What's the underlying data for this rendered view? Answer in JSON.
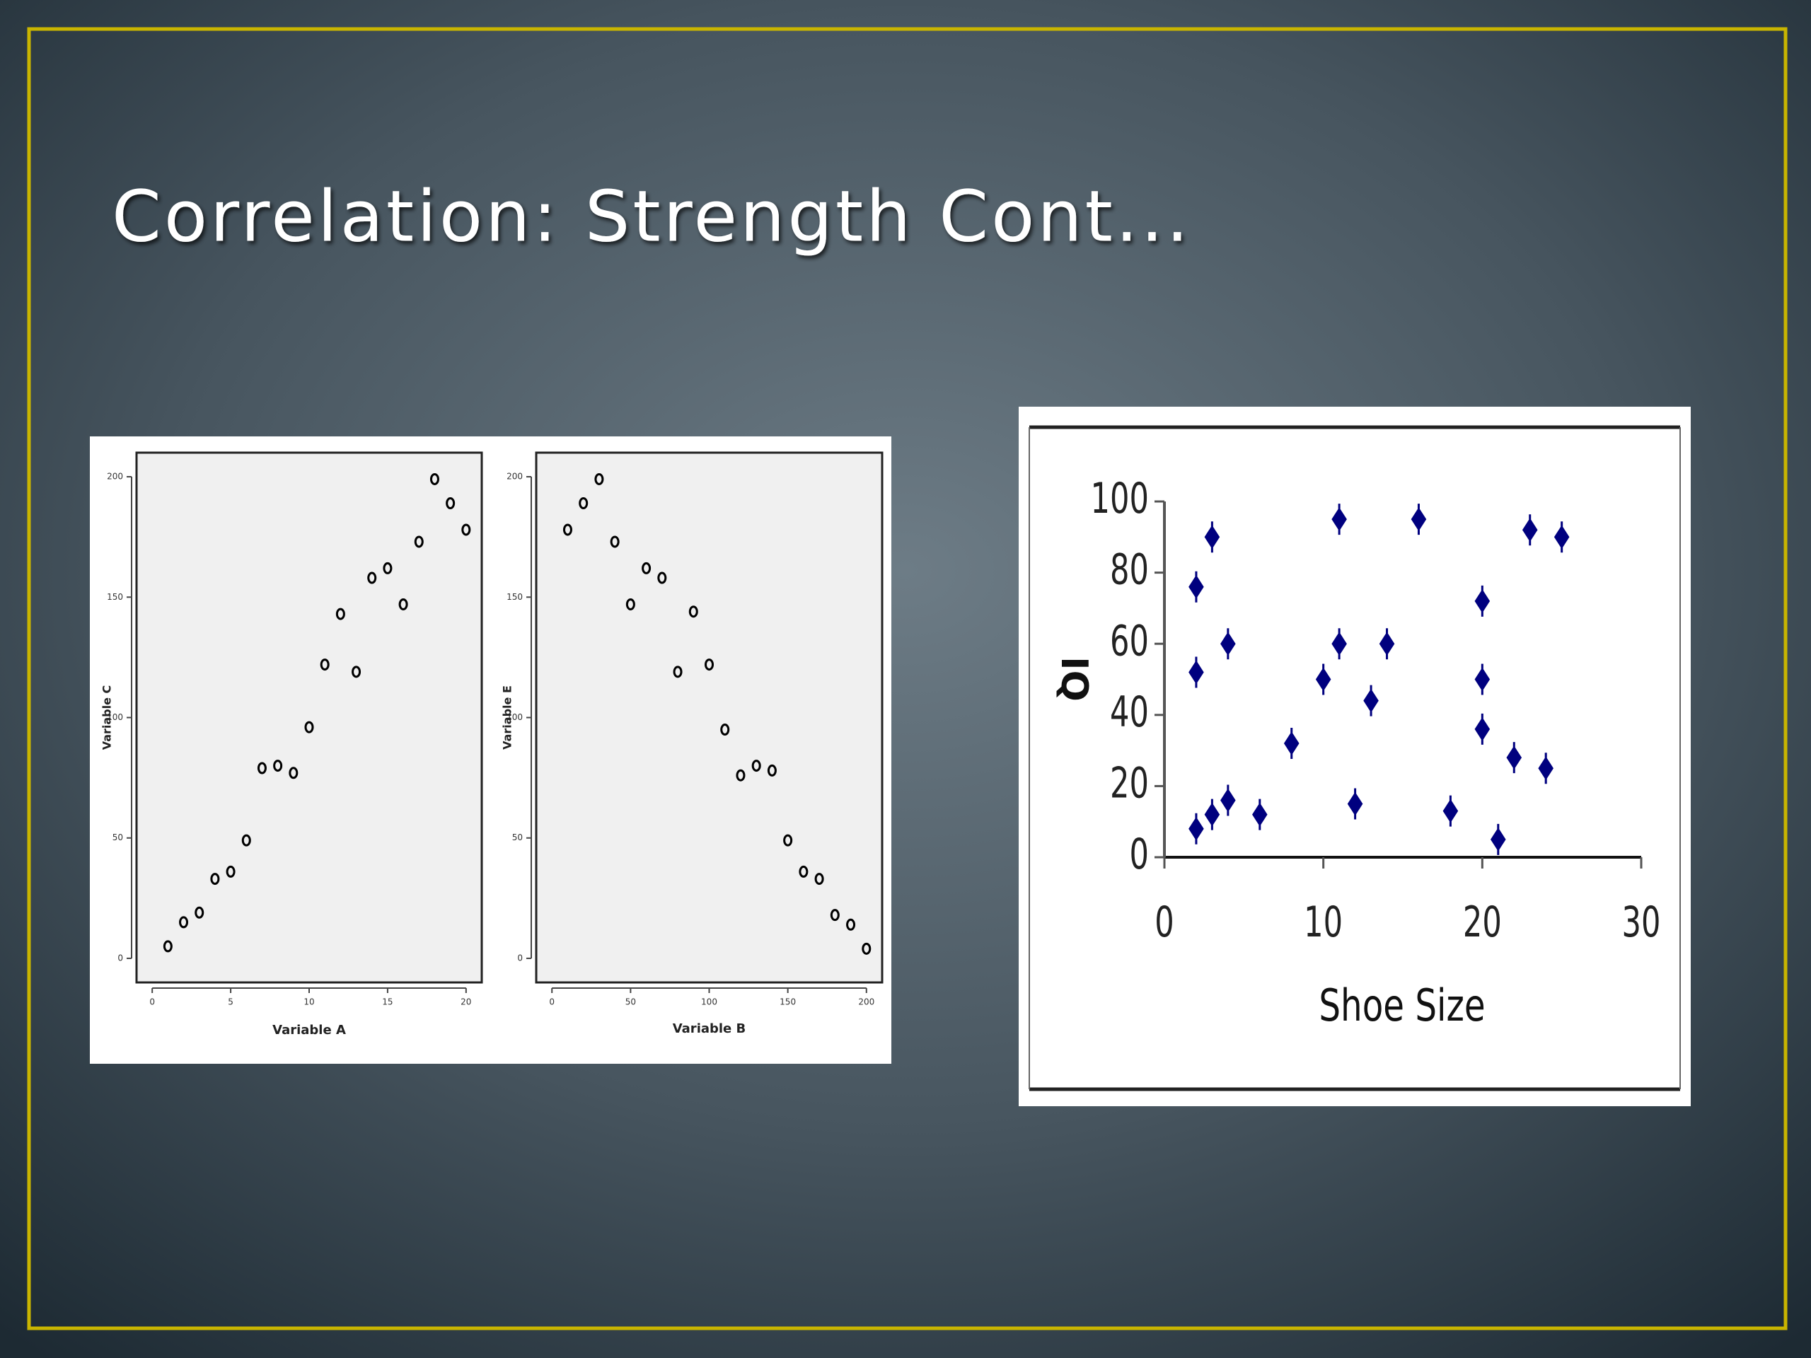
{
  "title": "Correlation: Strength Cont...",
  "chart_data": [
    {
      "type": "scatter",
      "x_label": "Variable A",
      "y_label": "Variable C",
      "x": [
        1,
        2,
        3,
        4,
        5,
        6,
        7,
        8,
        9,
        10,
        11,
        12,
        13,
        14,
        15,
        16,
        17,
        18,
        19,
        20
      ],
      "values": [
        5,
        15,
        19,
        33,
        36,
        49,
        79,
        80,
        77,
        96,
        122,
        143,
        119,
        158,
        162,
        147,
        173,
        199,
        189,
        178
      ],
      "xlim": [
        -1,
        21
      ],
      "ylim": [
        -10,
        210
      ],
      "xticks": [
        0,
        5,
        10,
        15,
        20
      ],
      "yticks": [
        0,
        50,
        100,
        150,
        200
      ],
      "color": "#000000"
    },
    {
      "type": "scatter",
      "x_label": "Variable B",
      "y_label": "Variable E",
      "x": [
        10,
        20,
        30,
        40,
        50,
        60,
        70,
        80,
        90,
        100,
        110,
        120,
        130,
        140,
        150,
        160,
        170,
        180,
        190,
        200
      ],
      "values": [
        178,
        189,
        199,
        173,
        147,
        162,
        158,
        119,
        144,
        122,
        95,
        76,
        80,
        78,
        49,
        36,
        33,
        18,
        14,
        4
      ],
      "xlim": [
        -10,
        210
      ],
      "ylim": [
        -10,
        210
      ],
      "xticks": [
        0,
        50,
        100,
        150,
        200
      ],
      "yticks": [
        0,
        50,
        100,
        150,
        200
      ],
      "color": "#000000"
    },
    {
      "type": "scatter",
      "x_label": "Shoe Size",
      "y_label": "IQ",
      "x": [
        2,
        2,
        2,
        3,
        3,
        4,
        4,
        6,
        8,
        10,
        11,
        11,
        12,
        13,
        14,
        16,
        18,
        20,
        20,
        20,
        21,
        22,
        23,
        24,
        25
      ],
      "values": [
        8,
        52,
        76,
        12,
        90,
        16,
        60,
        12,
        32,
        50,
        95,
        60,
        15,
        44,
        60,
        95,
        13,
        72,
        50,
        36,
        5,
        28,
        92,
        25,
        90
      ],
      "xlim": [
        0,
        30
      ],
      "ylim": [
        0,
        100
      ],
      "xticks": [
        0,
        10,
        20,
        30
      ],
      "yticks": [
        0,
        20,
        40,
        60,
        80,
        100
      ],
      "color": "#00007f"
    }
  ]
}
